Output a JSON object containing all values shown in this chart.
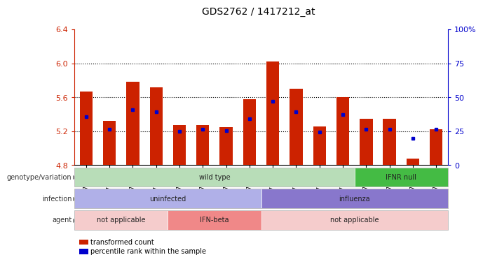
{
  "title": "GDS2762 / 1417212_at",
  "samples": [
    "GSM71992",
    "GSM71993",
    "GSM71994",
    "GSM71995",
    "GSM72004",
    "GSM72005",
    "GSM72006",
    "GSM72007",
    "GSM71996",
    "GSM71997",
    "GSM71998",
    "GSM71999",
    "GSM72000",
    "GSM72001",
    "GSM72002",
    "GSM72003"
  ],
  "bar_top": [
    5.67,
    5.32,
    5.78,
    5.72,
    5.27,
    5.27,
    5.25,
    5.58,
    6.02,
    5.7,
    5.26,
    5.6,
    5.35,
    5.35,
    4.88,
    5.22
  ],
  "bar_bottom": 4.8,
  "blue_y": [
    5.37,
    5.22,
    5.45,
    5.43,
    5.2,
    5.22,
    5.21,
    5.35,
    5.55,
    5.43,
    5.19,
    5.4,
    5.22,
    5.22,
    5.12,
    5.22
  ],
  "ylim_left": [
    4.8,
    6.4
  ],
  "ylim_right": [
    0,
    100
  ],
  "yticks_left": [
    4.8,
    5.2,
    5.6,
    6.0,
    6.4
  ],
  "yticks_right": [
    0,
    25,
    50,
    75,
    100
  ],
  "hlines": [
    5.2,
    5.6,
    6.0
  ],
  "bar_color": "#cc2200",
  "blue_color": "#0000cc",
  "genotype_row": {
    "label": "genotype/variation",
    "groups": [
      {
        "text": "wild type",
        "start": 0,
        "end": 11,
        "color": "#b8ddb8"
      },
      {
        "text": "IFNR null",
        "start": 12,
        "end": 15,
        "color": "#44bb44"
      }
    ]
  },
  "infection_row": {
    "label": "infection",
    "groups": [
      {
        "text": "uninfected",
        "start": 0,
        "end": 7,
        "color": "#b0b0e8"
      },
      {
        "text": "influenza",
        "start": 8,
        "end": 15,
        "color": "#8877cc"
      }
    ]
  },
  "agent_row": {
    "label": "agent",
    "groups": [
      {
        "text": "not applicable",
        "start": 0,
        "end": 3,
        "color": "#f5cccc"
      },
      {
        "text": "IFN-beta",
        "start": 4,
        "end": 7,
        "color": "#f08888"
      },
      {
        "text": "not applicable",
        "start": 8,
        "end": 15,
        "color": "#f5cccc"
      }
    ]
  },
  "legend_items": [
    {
      "color": "#cc2200",
      "label": "transformed count"
    },
    {
      "color": "#0000cc",
      "label": "percentile rank within the sample"
    }
  ]
}
